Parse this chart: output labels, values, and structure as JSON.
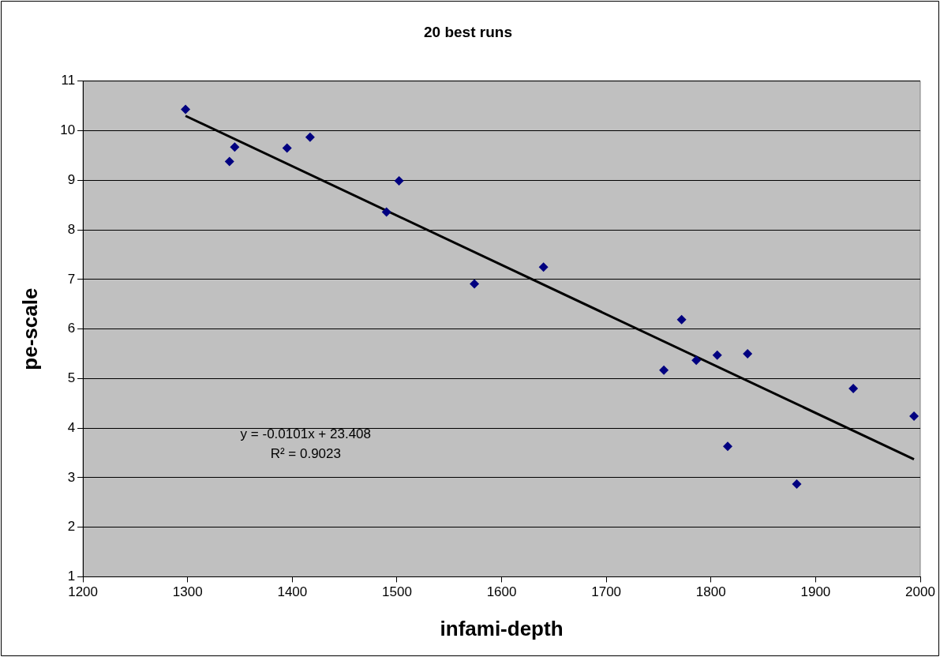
{
  "chart_data": {
    "type": "scatter",
    "title": "20 best runs",
    "xlabel": "infami-depth",
    "ylabel": "pe-scale",
    "xlim": [
      1200,
      2000
    ],
    "xticks": [
      1200,
      1300,
      1400,
      1500,
      1600,
      1700,
      1800,
      1900,
      2000
    ],
    "ylim": [
      1,
      11
    ],
    "yticks": [
      1,
      2,
      3,
      4,
      5,
      6,
      7,
      8,
      9,
      10,
      11
    ],
    "grid": "y",
    "legend": false,
    "marker": "diamond",
    "series": [
      {
        "type": "scatter",
        "color": "#000080",
        "x": [
          1298,
          1340,
          1345,
          1395,
          1417,
          1490,
          1502,
          1574,
          1640,
          1755,
          1772,
          1786,
          1806,
          1816,
          1835,
          1882,
          1936,
          1994
        ],
        "values": [
          10.43,
          9.38,
          9.67,
          9.65,
          9.87,
          8.36,
          8.99,
          6.91,
          7.25,
          5.17,
          6.19,
          5.37,
          5.47,
          3.63,
          5.5,
          2.87,
          4.8,
          4.24
        ]
      },
      {
        "type": "line",
        "color": "#000000",
        "marker": "none",
        "x": [
          1298,
          1994
        ],
        "values": [
          10.3,
          3.37
        ]
      }
    ],
    "annotations": [
      "y = -0.0101x + 23.408",
      "R² = 0.9023"
    ]
  }
}
